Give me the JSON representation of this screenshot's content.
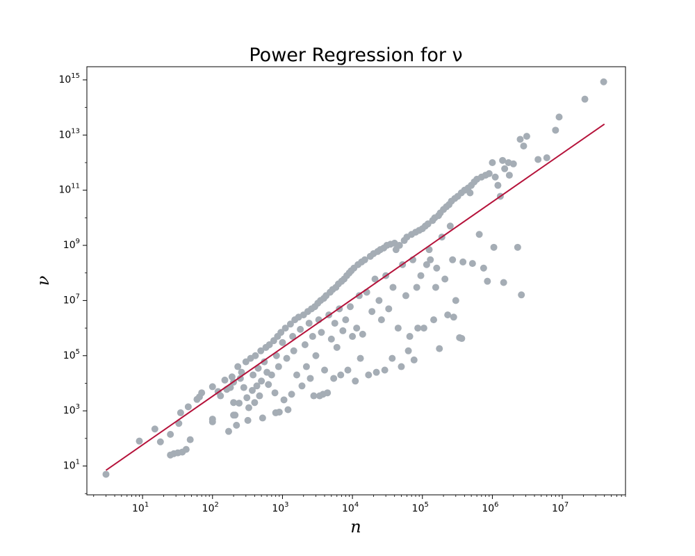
{
  "chart_data": {
    "type": "scatter",
    "title": "Power Regression for ν",
    "xlabel": "n",
    "ylabel": "ν",
    "x_scale": "log",
    "y_scale": "log",
    "xlim": [
      1.6,
      80000000
    ],
    "ylim": [
      0.9,
      3000000000000000
    ],
    "x_ticks": [
      {
        "value": 10,
        "base": "10",
        "exp": "1"
      },
      {
        "value": 100,
        "base": "10",
        "exp": "2"
      },
      {
        "value": 1000,
        "base": "10",
        "exp": "3"
      },
      {
        "value": 10000,
        "base": "10",
        "exp": "4"
      },
      {
        "value": 100000,
        "base": "10",
        "exp": "5"
      },
      {
        "value": 1000000,
        "base": "10",
        "exp": "6"
      },
      {
        "value": 10000000,
        "base": "10",
        "exp": "7"
      }
    ],
    "y_ticks": [
      {
        "value": 10,
        "base": "10",
        "exp": "1"
      },
      {
        "value": 1000,
        "base": "10",
        "exp": "3"
      },
      {
        "value": 100000,
        "base": "10",
        "exp": "5"
      },
      {
        "value": 10000000,
        "base": "10",
        "exp": "7"
      },
      {
        "value": 1000000000,
        "base": "10",
        "exp": "9"
      },
      {
        "value": 100000000000,
        "base": "10",
        "exp": "11"
      },
      {
        "value": 10000000000000,
        "base": "10",
        "exp": "13"
      },
      {
        "value": 1000000000000000,
        "base": "10",
        "exp": "15"
      }
    ],
    "grid": false,
    "legend": false,
    "colors": {
      "points": "#a5adb5",
      "fit_line": "#b5123a",
      "axes": "#000000"
    },
    "regression_line": [
      {
        "x": 3,
        "y": 7
      },
      {
        "x": 40000000,
        "y": 25000000000000
      }
    ],
    "series": [
      {
        "points": [
          {
            "x": 3,
            "y": 5
          },
          {
            "x": 9,
            "y": 80
          },
          {
            "x": 15,
            "y": 220
          },
          {
            "x": 18,
            "y": 75
          },
          {
            "x": 25,
            "y": 140
          },
          {
            "x": 25,
            "y": 25
          },
          {
            "x": 28,
            "y": 28
          },
          {
            "x": 32,
            "y": 30
          },
          {
            "x": 33,
            "y": 350
          },
          {
            "x": 35,
            "y": 850
          },
          {
            "x": 37,
            "y": 32
          },
          {
            "x": 42,
            "y": 40
          },
          {
            "x": 45,
            "y": 1400
          },
          {
            "x": 48,
            "y": 90
          },
          {
            "x": 60,
            "y": 2600
          },
          {
            "x": 65,
            "y": 3200
          },
          {
            "x": 70,
            "y": 4500
          },
          {
            "x": 100,
            "y": 500
          },
          {
            "x": 100,
            "y": 400
          },
          {
            "x": 100,
            "y": 7500
          },
          {
            "x": 120,
            "y": 5000
          },
          {
            "x": 130,
            "y": 3500
          },
          {
            "x": 150,
            "y": 13000
          },
          {
            "x": 160,
            "y": 6000
          },
          {
            "x": 170,
            "y": 180
          },
          {
            "x": 180,
            "y": 7000
          },
          {
            "x": 190,
            "y": 17000
          },
          {
            "x": 200,
            "y": 700
          },
          {
            "x": 200,
            "y": 2000
          },
          {
            "x": 200,
            "y": 11000
          },
          {
            "x": 210,
            "y": 700
          },
          {
            "x": 220,
            "y": 300
          },
          {
            "x": 230,
            "y": 40000
          },
          {
            "x": 240,
            "y": 1900
          },
          {
            "x": 250,
            "y": 15000
          },
          {
            "x": 260,
            "y": 25000
          },
          {
            "x": 280,
            "y": 7000
          },
          {
            "x": 300,
            "y": 60000
          },
          {
            "x": 310,
            "y": 3000
          },
          {
            "x": 320,
            "y": 450
          },
          {
            "x": 330,
            "y": 1300
          },
          {
            "x": 350,
            "y": 80000
          },
          {
            "x": 370,
            "y": 5500
          },
          {
            "x": 380,
            "y": 20000
          },
          {
            "x": 400,
            "y": 2000
          },
          {
            "x": 410,
            "y": 100000
          },
          {
            "x": 430,
            "y": 8000
          },
          {
            "x": 450,
            "y": 35000
          },
          {
            "x": 470,
            "y": 3500
          },
          {
            "x": 490,
            "y": 150000
          },
          {
            "x": 500,
            "y": 12000
          },
          {
            "x": 520,
            "y": 550
          },
          {
            "x": 550,
            "y": 60000
          },
          {
            "x": 580,
            "y": 200000
          },
          {
            "x": 600,
            "y": 25000
          },
          {
            "x": 630,
            "y": 9000
          },
          {
            "x": 650,
            "y": 250000
          },
          {
            "x": 700,
            "y": 20000
          },
          {
            "x": 750,
            "y": 350000
          },
          {
            "x": 780,
            "y": 4500
          },
          {
            "x": 800,
            "y": 850
          },
          {
            "x": 820,
            "y": 100000
          },
          {
            "x": 850,
            "y": 500000
          },
          {
            "x": 880,
            "y": 40000
          },
          {
            "x": 900,
            "y": 900
          },
          {
            "x": 950,
            "y": 700000
          },
          {
            "x": 1000,
            "y": 300000
          },
          {
            "x": 1050,
            "y": 2500
          },
          {
            "x": 1100,
            "y": 1000000
          },
          {
            "x": 1150,
            "y": 80000
          },
          {
            "x": 1200,
            "y": 1100
          },
          {
            "x": 1300,
            "y": 1400000
          },
          {
            "x": 1350,
            "y": 4000
          },
          {
            "x": 1400,
            "y": 500000
          },
          {
            "x": 1450,
            "y": 150000
          },
          {
            "x": 1500,
            "y": 2000000
          },
          {
            "x": 1600,
            "y": 20000
          },
          {
            "x": 1700,
            "y": 2500000
          },
          {
            "x": 1800,
            "y": 900000
          },
          {
            "x": 1900,
            "y": 8000
          },
          {
            "x": 2000,
            "y": 3000000
          },
          {
            "x": 2100,
            "y": 250000
          },
          {
            "x": 2200,
            "y": 40000
          },
          {
            "x": 2300,
            "y": 4000000
          },
          {
            "x": 2400,
            "y": 1500000
          },
          {
            "x": 2500,
            "y": 15000
          },
          {
            "x": 2600,
            "y": 5000000
          },
          {
            "x": 2700,
            "y": 500000
          },
          {
            "x": 2800,
            "y": 3500
          },
          {
            "x": 2900,
            "y": 6000000
          },
          {
            "x": 3000,
            "y": 100000
          },
          {
            "x": 3200,
            "y": 8000000
          },
          {
            "x": 3300,
            "y": 2000000
          },
          {
            "x": 3400,
            "y": 3500
          },
          {
            "x": 3500,
            "y": 10000000
          },
          {
            "x": 3600,
            "y": 700000
          },
          {
            "x": 3800,
            "y": 4000
          },
          {
            "x": 3900,
            "y": 12000000
          },
          {
            "x": 4000,
            "y": 30000
          },
          {
            "x": 4200,
            "y": 15000000
          },
          {
            "x": 4400,
            "y": 4500
          },
          {
            "x": 4600,
            "y": 3000000
          },
          {
            "x": 4800,
            "y": 20000000
          },
          {
            "x": 5000,
            "y": 400000
          },
          {
            "x": 5200,
            "y": 25000000
          },
          {
            "x": 5400,
            "y": 15000
          },
          {
            "x": 5600,
            "y": 1500000
          },
          {
            "x": 5800,
            "y": 30000000
          },
          {
            "x": 6000,
            "y": 200000
          },
          {
            "x": 6300,
            "y": 40000000
          },
          {
            "x": 6500,
            "y": 5000000
          },
          {
            "x": 6800,
            "y": 20000
          },
          {
            "x": 7000,
            "y": 50000000
          },
          {
            "x": 7300,
            "y": 800000
          },
          {
            "x": 7600,
            "y": 60000000
          },
          {
            "x": 8000,
            "y": 2000000
          },
          {
            "x": 8300,
            "y": 80000000
          },
          {
            "x": 8600,
            "y": 30000
          },
          {
            "x": 9000,
            "y": 100000000
          },
          {
            "x": 9300,
            "y": 6000000
          },
          {
            "x": 9600,
            "y": 120000000
          },
          {
            "x": 10000,
            "y": 500000
          },
          {
            "x": 10500,
            "y": 150000000
          },
          {
            "x": 11000,
            "y": 12000
          },
          {
            "x": 11500,
            "y": 1000000
          },
          {
            "x": 12000,
            "y": 200000000
          },
          {
            "x": 12500,
            "y": 15000000
          },
          {
            "x": 13000,
            "y": 80000
          },
          {
            "x": 13500,
            "y": 250000000
          },
          {
            "x": 14000,
            "y": 600000
          },
          {
            "x": 15000,
            "y": 300000000
          },
          {
            "x": 16000,
            "y": 20000000
          },
          {
            "x": 17000,
            "y": 20000
          },
          {
            "x": 18000,
            "y": 400000000
          },
          {
            "x": 19000,
            "y": 4000000
          },
          {
            "x": 20000,
            "y": 500000000
          },
          {
            "x": 21000,
            "y": 60000000
          },
          {
            "x": 22000,
            "y": 25000
          },
          {
            "x": 23000,
            "y": 600000000
          },
          {
            "x": 24000,
            "y": 10000000
          },
          {
            "x": 25000,
            "y": 700000000
          },
          {
            "x": 26000,
            "y": 2000000
          },
          {
            "x": 28000,
            "y": 800000000
          },
          {
            "x": 29000,
            "y": 30000
          },
          {
            "x": 30000,
            "y": 80000000
          },
          {
            "x": 31000,
            "y": 1000000000
          },
          {
            "x": 33000,
            "y": 5000000
          },
          {
            "x": 35000,
            "y": 1100000000
          },
          {
            "x": 37000,
            "y": 80000
          },
          {
            "x": 38000,
            "y": 30000000
          },
          {
            "x": 40000,
            "y": 1200000000
          },
          {
            "x": 42000,
            "y": 700000000
          },
          {
            "x": 45000,
            "y": 1000000
          },
          {
            "x": 47000,
            "y": 1000000000
          },
          {
            "x": 50000,
            "y": 40000
          },
          {
            "x": 52000,
            "y": 200000000
          },
          {
            "x": 55000,
            "y": 1500000000
          },
          {
            "x": 58000,
            "y": 15000000
          },
          {
            "x": 60000,
            "y": 2000000000
          },
          {
            "x": 63000,
            "y": 150000
          },
          {
            "x": 66000,
            "y": 500000
          },
          {
            "x": 70000,
            "y": 2500000000
          },
          {
            "x": 73000,
            "y": 300000000
          },
          {
            "x": 76000,
            "y": 70000
          },
          {
            "x": 80000,
            "y": 3000000000
          },
          {
            "x": 83000,
            "y": 30000000
          },
          {
            "x": 86000,
            "y": 1000000
          },
          {
            "x": 90000,
            "y": 3500000000
          },
          {
            "x": 95000,
            "y": 80000000
          },
          {
            "x": 100000,
            "y": 4000000000
          },
          {
            "x": 105000,
            "y": 1000000
          },
          {
            "x": 110000,
            "y": 5000000000
          },
          {
            "x": 115000,
            "y": 200000000
          },
          {
            "x": 120000,
            "y": 6000000000
          },
          {
            "x": 125000,
            "y": 700000000
          },
          {
            "x": 130000,
            "y": 300000000
          },
          {
            "x": 140000,
            "y": 8000000000
          },
          {
            "x": 145000,
            "y": 2000000
          },
          {
            "x": 150000,
            "y": 10000000000
          },
          {
            "x": 155000,
            "y": 30000000
          },
          {
            "x": 160000,
            "y": 150000000
          },
          {
            "x": 170000,
            "y": 12000000000
          },
          {
            "x": 175000,
            "y": 180000
          },
          {
            "x": 180000,
            "y": 15000000000
          },
          {
            "x": 190000,
            "y": 2000000000
          },
          {
            "x": 200000,
            "y": 20000000000
          },
          {
            "x": 210000,
            "y": 60000000
          },
          {
            "x": 220000,
            "y": 25000000000
          },
          {
            "x": 230000,
            "y": 3000000
          },
          {
            "x": 240000,
            "y": 30000000000
          },
          {
            "x": 250000,
            "y": 5000000000
          },
          {
            "x": 260000,
            "y": 40000000000
          },
          {
            "x": 270000,
            "y": 300000000
          },
          {
            "x": 280000,
            "y": 2500000
          },
          {
            "x": 290000,
            "y": 50000000000
          },
          {
            "x": 300000,
            "y": 10000000
          },
          {
            "x": 320000,
            "y": 60000000000
          },
          {
            "x": 340000,
            "y": 450000
          },
          {
            "x": 360000,
            "y": 80000000000
          },
          {
            "x": 365000,
            "y": 420000
          },
          {
            "x": 380000,
            "y": 250000000
          },
          {
            "x": 400000,
            "y": 100000000000
          },
          {
            "x": 450000,
            "y": 120000000000
          },
          {
            "x": 480000,
            "y": 80000000000
          },
          {
            "x": 500000,
            "y": 150000000000
          },
          {
            "x": 520000,
            "y": 220000000
          },
          {
            "x": 550000,
            "y": 200000000000
          },
          {
            "x": 600000,
            "y": 250000000000
          },
          {
            "x": 650000,
            "y": 2500000000
          },
          {
            "x": 700000,
            "y": 300000000000
          },
          {
            "x": 750000,
            "y": 150000000
          },
          {
            "x": 800000,
            "y": 350000000000
          },
          {
            "x": 850000,
            "y": 50000000
          },
          {
            "x": 900000,
            "y": 400000000000
          },
          {
            "x": 1000000,
            "y": 1000000000000
          },
          {
            "x": 1050000,
            "y": 850000000
          },
          {
            "x": 1100000,
            "y": 300000000000
          },
          {
            "x": 1200000,
            "y": 150000000000
          },
          {
            "x": 1300000,
            "y": 60000000000
          },
          {
            "x": 1400000,
            "y": 1200000000000
          },
          {
            "x": 1450000,
            "y": 45000000
          },
          {
            "x": 1500000,
            "y": 600000000000
          },
          {
            "x": 1700000,
            "y": 1000000000000
          },
          {
            "x": 1750000,
            "y": 350000000000
          },
          {
            "x": 2000000,
            "y": 900000000000
          },
          {
            "x": 2300000,
            "y": 850000000
          },
          {
            "x": 2500000,
            "y": 7000000000000
          },
          {
            "x": 2600000,
            "y": 16000000
          },
          {
            "x": 2800000,
            "y": 4000000000000
          },
          {
            "x": 3100000,
            "y": 9000000000000
          },
          {
            "x": 4500000,
            "y": 1300000000000
          },
          {
            "x": 6000000,
            "y": 1500000000000
          },
          {
            "x": 8000000,
            "y": 15000000000000
          },
          {
            "x": 9000000,
            "y": 45000000000000
          },
          {
            "x": 21000000,
            "y": 200000000000000
          },
          {
            "x": 39000000,
            "y": 850000000000000
          }
        ]
      }
    ]
  }
}
